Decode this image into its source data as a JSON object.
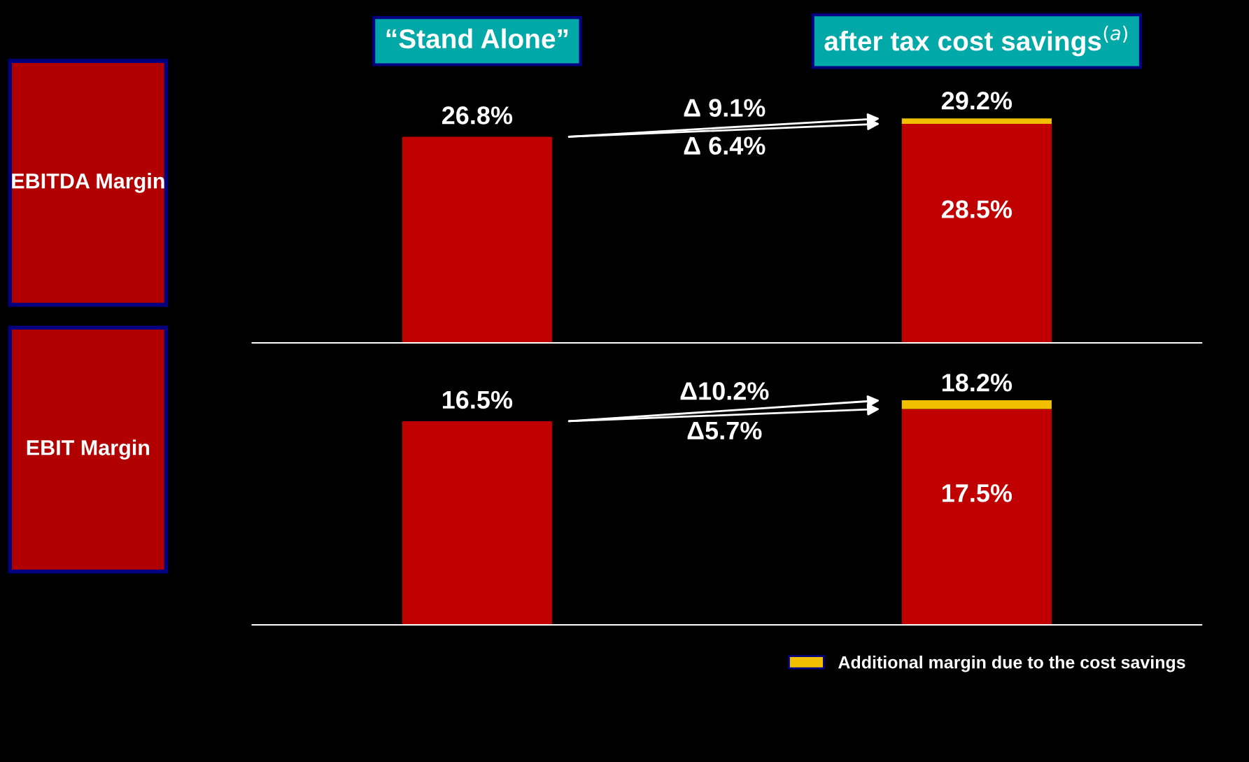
{
  "chart_data": [
    {
      "type": "bar",
      "title": "EBITDA Margin",
      "categories": [
        "“Stand Alone”",
        "after tax cost savings$^{(a)}$"
      ],
      "stacked": true,
      "legend": false,
      "series": [
        {
          "color": "#c00000",
          "values": [
            26.8,
            28.5
          ],
          "value_labels": [
            "26.8%",
            "28.5%"
          ]
        },
        {
          "color": "#f0c000",
          "values": [
            null,
            0.7
          ]
        }
      ],
      "totals": [
        null,
        "29.2%"
      ],
      "annotations": [
        "Δ 9.1%",
        "Δ 6.4%"
      ]
    },
    {
      "type": "bar",
      "title": "EBIT Margin",
      "categories": [
        null,
        null
      ],
      "stacked": true,
      "legend": "bottom right",
      "series": [
        {
          "color": "#c00000",
          "values": [
            16.5,
            17.5
          ],
          "value_labels": [
            "16.5%",
            "17.5%"
          ]
        },
        {
          "name": "Additional margin due to the cost savings",
          "color": "#f0c000",
          "values": [
            null,
            0.7
          ]
        }
      ],
      "totals": [
        null,
        "18.2%"
      ],
      "annotations": [
        "Δ10.2%",
        "Δ5.7%"
      ]
    }
  ]
}
